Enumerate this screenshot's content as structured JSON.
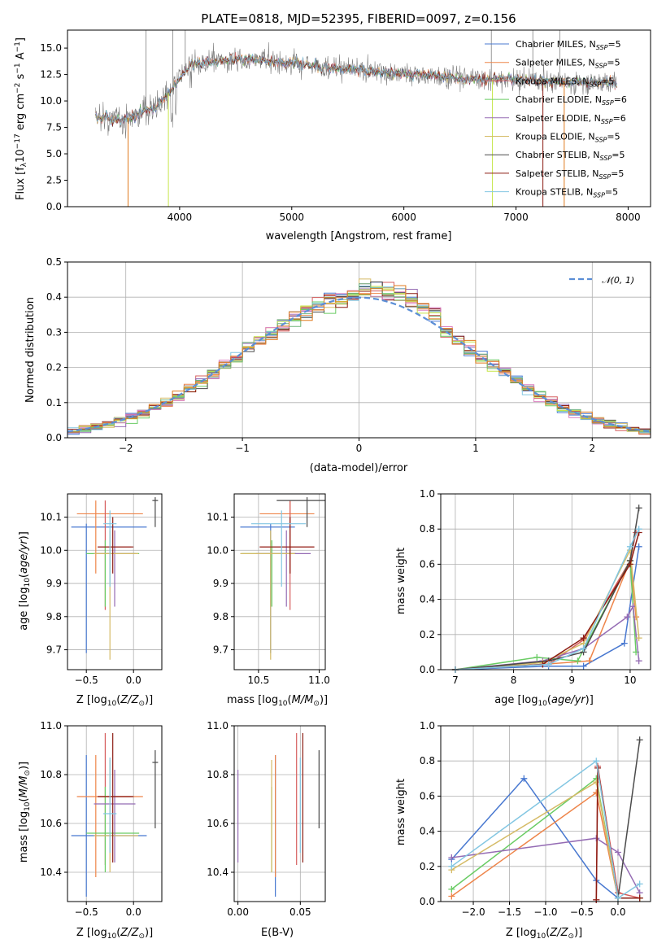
{
  "chart_data": [
    {
      "id": "spectrum",
      "type": "line",
      "title": "PLATE=0818, MJD=52395, FIBERID=0097, z=0.156",
      "xlabel": "wavelength [Angstrom, rest frame]",
      "ylabel": "Flux [fλ10⁻¹⁷ erg cm⁻² s⁻¹ A⁻¹]",
      "xlim": [
        3000,
        8200
      ],
      "ylim": [
        0,
        16.7
      ],
      "xticks": [
        4000,
        5000,
        6000,
        7000,
        8000
      ],
      "yticks": [
        0.0,
        2.5,
        5.0,
        7.5,
        10.0,
        12.5,
        15.0
      ],
      "grid": false,
      "legend_placement": "right",
      "series_names": [
        "Chabrier MILES, N_SSP=5",
        "Salpeter MILES, N_SSP=5",
        "Kroupa MILES, N_SSP=5",
        "Chabrier ELODIE, N_SSP=6",
        "Salpeter ELODIE, N_SSP=6",
        "Kroupa ELODIE, N_SSP=5",
        "Chabrier STELIB, N_SSP=5",
        "Salpeter STELIB, N_SSP=5",
        "Kroupa STELIB, N_SSP=5"
      ],
      "continuum": {
        "x": [
          3250,
          3500,
          3800,
          4000,
          4100,
          4500,
          5000,
          5500,
          6000,
          6500,
          7000,
          7500,
          7900
        ],
        "y": [
          8.5,
          8.2,
          9.5,
          12.0,
          13.5,
          14.0,
          13.6,
          13.0,
          12.6,
          12.2,
          12.0,
          11.8,
          11.7
        ]
      }
    },
    {
      "id": "residuals",
      "type": "bar",
      "xlabel": "(data-model)/error",
      "ylabel": "Normed distribution",
      "xlim": [
        -2.5,
        2.5
      ],
      "ylim": [
        0,
        0.5
      ],
      "xticks": [
        -2,
        -1,
        0,
        1,
        2
      ],
      "yticks": [
        0.0,
        0.1,
        0.2,
        0.3,
        0.4,
        0.5
      ],
      "grid": true,
      "legend_placement": "top-right",
      "legend_label": "N(0,1)",
      "bin_width": 0.1,
      "bin_start": -2.5
    },
    {
      "id": "age_vs_Z",
      "type": "scatter",
      "xlabel": "Z [log10(Z/Z☉)]",
      "ylabel": "age [log10(age/yr)]",
      "xlim": [
        -0.7,
        0.3
      ],
      "ylim": [
        9.64,
        10.17
      ],
      "xticks": [
        -0.5,
        0.0
      ],
      "yticks": [
        9.7,
        9.8,
        9.9,
        10.0,
        10.1
      ],
      "grid": true
    },
    {
      "id": "age_vs_mass",
      "type": "scatter",
      "xlabel": "mass [log10(M/M☉)]",
      "xlim": [
        10.3,
        11.05
      ],
      "ylim": [
        9.64,
        10.17
      ],
      "xticks": [
        10.5,
        11.0
      ],
      "yticks": [
        9.7,
        9.8,
        9.9,
        10.0,
        10.1
      ],
      "grid": true
    },
    {
      "id": "massweight_vs_age",
      "type": "line",
      "xlabel": "age [log10(age/yr)]",
      "ylabel": "mass weight",
      "xlim": [
        6.75,
        10.35
      ],
      "ylim": [
        0,
        1.0
      ],
      "xticks": [
        7,
        8,
        9,
        10
      ],
      "yticks": [
        0.0,
        0.2,
        0.4,
        0.6,
        0.8,
        1.0
      ],
      "grid": true
    },
    {
      "id": "mass_vs_Z",
      "type": "scatter",
      "xlabel": "Z [log10(Z/Z☉)]",
      "ylabel": "mass [log10(M/M☉)]",
      "xlim": [
        -0.7,
        0.3
      ],
      "ylim": [
        10.28,
        11.0
      ],
      "xticks": [
        -0.5,
        0.0
      ],
      "yticks": [
        10.4,
        10.6,
        10.8,
        11.0
      ],
      "grid": true
    },
    {
      "id": "mass_vs_ebv",
      "type": "scatter",
      "xlabel": "E(B-V)",
      "xlim": [
        -0.003,
        0.07
      ],
      "ylim": [
        10.28,
        11.0
      ],
      "xticks": [
        0.0,
        0.05
      ],
      "yticks": [
        10.4,
        10.6,
        10.8,
        11.0
      ],
      "grid": true
    },
    {
      "id": "massweight_vs_Z",
      "type": "line",
      "xlabel": "Z [log10(Z/Z☉)]",
      "ylabel": "mass weight",
      "xlim": [
        -2.45,
        0.45
      ],
      "ylim": [
        0,
        1.0
      ],
      "xticks": [
        -2.0,
        -1.5,
        -1.0,
        -0.5,
        0.0
      ],
      "yticks": [
        0.0,
        0.2,
        0.4,
        0.6,
        0.8,
        1.0
      ],
      "grid": true
    }
  ],
  "models": [
    {
      "name": "Chabrier MILES",
      "nssp": 5,
      "color": "#4878d0",
      "Z": [
        -0.5,
        -0.55,
        0.13
      ],
      "age": [
        10.07,
        9.69,
        10.08
      ],
      "mass": [
        10.55,
        10.3,
        10.88
      ],
      "ebv": [
        0.03,
        0.0,
        0.0
      ],
      "Zx": [
        -0.66,
        0.14
      ],
      "ages": [
        7.0,
        8.6,
        9.2,
        9.9,
        10.15
      ],
      "mw_age": [
        0.0,
        0.02,
        0.02,
        0.15,
        0.7
      ],
      "Zs": [
        -2.3,
        -1.3,
        -0.3,
        0.0,
        0.3
      ],
      "mw_Z": [
        0.24,
        0.7,
        0.12,
        0.02,
        0.02
      ]
    },
    {
      "name": "Salpeter MILES",
      "nssp": 5,
      "color": "#ee854a",
      "Z": [
        -0.4,
        -0.42,
        0.1
      ],
      "age": [
        10.11,
        9.93,
        10.15
      ],
      "mass": [
        10.71,
        10.38,
        10.88
      ],
      "ebv": [
        0.03,
        0.0,
        0.0
      ],
      "Zx": [
        -0.6,
        0.1
      ],
      "ages": [
        7.0,
        8.5,
        9.3,
        10.0,
        10.1
      ],
      "mw_age": [
        0.0,
        0.03,
        0.05,
        0.62,
        0.3
      ],
      "Zs": [
        -2.3,
        -0.3,
        0.0,
        0.3
      ],
      "mw_Z": [
        0.03,
        0.62,
        0.02,
        0.02
      ]
    },
    {
      "name": "Kroupa MILES",
      "nssp": 5,
      "color": "#d65f5f",
      "Z": [
        -0.3,
        -0.35,
        0.0
      ],
      "age": [
        10.01,
        9.82,
        10.15
      ],
      "mass": [
        10.71,
        10.43,
        10.97
      ],
      "ebv": [
        0.047,
        0.0,
        0.0
      ],
      "Zx": [
        -0.38,
        -0.02
      ],
      "ages": [
        7.0,
        8.6,
        9.2,
        10.0,
        10.1
      ],
      "mw_age": [
        0.0,
        0.03,
        0.17,
        0.62,
        0.78
      ],
      "Zs": [
        -0.3,
        -0.28,
        0.0,
        0.3
      ],
      "mw_Z": [
        0.01,
        0.77,
        0.05,
        0.02
      ]
    },
    {
      "name": "Chabrier ELODIE",
      "nssp": 6,
      "color": "#6acc64",
      "Z": [
        -0.3,
        -0.35,
        0.0
      ],
      "age": [
        9.99,
        9.83,
        10.03
      ],
      "mass": [
        10.56,
        10.4,
        10.75
      ],
      "ebv": [
        0.027,
        0.0,
        0.0
      ],
      "Zx": [
        -0.5,
        0.06
      ],
      "ages": [
        7.0,
        8.4,
        9.1,
        10.0,
        10.1
      ],
      "mw_age": [
        0.0,
        0.07,
        0.05,
        0.62,
        0.1
      ],
      "Zs": [
        -2.3,
        -0.3,
        0.0,
        0.3
      ],
      "mw_Z": [
        0.07,
        0.7,
        0.02,
        0.02
      ]
    },
    {
      "name": "Salpeter ELODIE",
      "nssp": 6,
      "color": "#956cb4",
      "Z": [
        -0.2,
        -0.3,
        0.05
      ],
      "age": [
        9.99,
        9.83,
        10.06
      ],
      "mass": [
        10.68,
        10.44,
        10.82
      ],
      "ebv": [
        0.0,
        0.0,
        0.0
      ],
      "Zx": [
        -0.42,
        0.02
      ],
      "ages": [
        7.0,
        8.5,
        9.2,
        9.95,
        10.05,
        10.15
      ],
      "mw_age": [
        0.0,
        0.05,
        0.12,
        0.3,
        0.36,
        0.05
      ],
      "Zs": [
        -2.3,
        -0.3,
        0.0,
        0.3
      ],
      "mw_Z": [
        0.25,
        0.36,
        0.28,
        0.05
      ]
    },
    {
      "name": "Kroupa ELODIE",
      "nssp": 5,
      "color": "#d5bb67",
      "Z": [
        -0.25,
        -0.3,
        0.05
      ],
      "age": [
        9.99,
        9.67,
        10.06
      ],
      "mass": [
        10.55,
        10.4,
        10.86
      ],
      "ebv": [
        0.027,
        0.0,
        0.0
      ],
      "Zx": [
        -0.42,
        0.05
      ],
      "ages": [
        7.0,
        8.5,
        9.2,
        10.0,
        10.15
      ],
      "mw_age": [
        0.0,
        0.04,
        0.15,
        0.68,
        0.18
      ],
      "Zs": [
        -2.3,
        -0.3,
        0.0,
        0.3
      ],
      "mw_Z": [
        0.18,
        0.68,
        0.02,
        0.02
      ]
    },
    {
      "name": "Chabrier STELIB",
      "nssp": 5,
      "color": "#4a4a4a",
      "Z": [
        0.23,
        0.2,
        0.26
      ],
      "age": [
        10.15,
        10.07,
        10.16
      ],
      "mass": [
        10.85,
        10.58,
        10.9
      ],
      "ebv": [
        0.065,
        0.0,
        0.0
      ],
      "Zx": [
        0.2,
        0.26
      ],
      "ages": [
        7.0,
        8.6,
        9.2,
        10.0,
        10.15
      ],
      "mw_age": [
        0.0,
        0.05,
        0.1,
        0.62,
        0.92
      ],
      "Zs": [
        0.0,
        0.3
      ],
      "mw_Z": [
        0.02,
        0.92
      ]
    },
    {
      "name": "Salpeter STELIB",
      "nssp": 5,
      "color": "#8c1c13",
      "Z": [
        -0.22,
        -0.24,
        0.0
      ],
      "age": [
        10.01,
        9.93,
        10.1
      ],
      "mass": [
        10.71,
        10.44,
        10.97
      ],
      "ebv": [
        0.052,
        0.0,
        0.0
      ],
      "Zx": [
        -0.38,
        0.0
      ],
      "ages": [
        7.0,
        8.5,
        9.2,
        10.0,
        10.15
      ],
      "mw_age": [
        0.0,
        0.03,
        0.18,
        0.6,
        0.78
      ],
      "Zs": [
        -0.3,
        -0.28,
        0.0,
        0.3
      ],
      "mw_Z": [
        0.01,
        0.76,
        0.02,
        0.02
      ]
    },
    {
      "name": "Kroupa STELIB",
      "nssp": 5,
      "color": "#82c6e2",
      "Z": [
        -0.25,
        -0.3,
        -0.15
      ],
      "age": [
        10.08,
        9.89,
        10.12
      ],
      "mass": [
        10.64,
        10.48,
        10.87
      ],
      "ebv": [
        0.05,
        0.0,
        0.0
      ],
      "Zx": [
        -0.32,
        -0.18
      ],
      "ages": [
        7.0,
        8.6,
        9.2,
        10.0,
        10.15
      ],
      "mw_age": [
        0.0,
        0.03,
        0.12,
        0.7,
        0.8
      ],
      "Zs": [
        -2.3,
        -0.3,
        0.0,
        0.3
      ],
      "mw_Z": [
        0.2,
        0.8,
        0.02,
        0.1
      ]
    }
  ],
  "extra_colors": {
    "pink": "#dc7ec0",
    "lime": "#c6e54a",
    "teal": "#6fb37a",
    "orange2": "#e07b1f"
  }
}
